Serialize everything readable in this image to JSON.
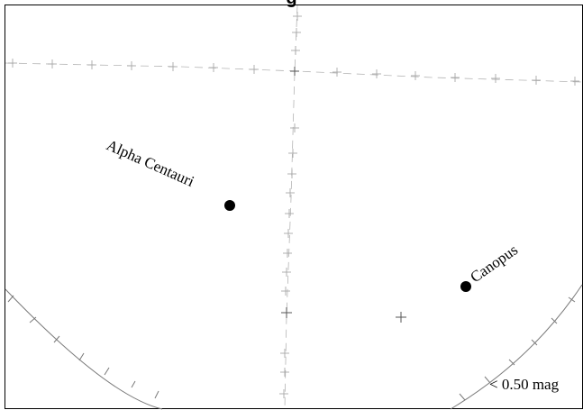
{
  "chart": {
    "title": "g"
  },
  "stars": [
    {
      "name": "Alpha Centauri"
    },
    {
      "name": "Canopus"
    }
  ],
  "legend": {
    "label": "< 0.50 mag"
  }
}
